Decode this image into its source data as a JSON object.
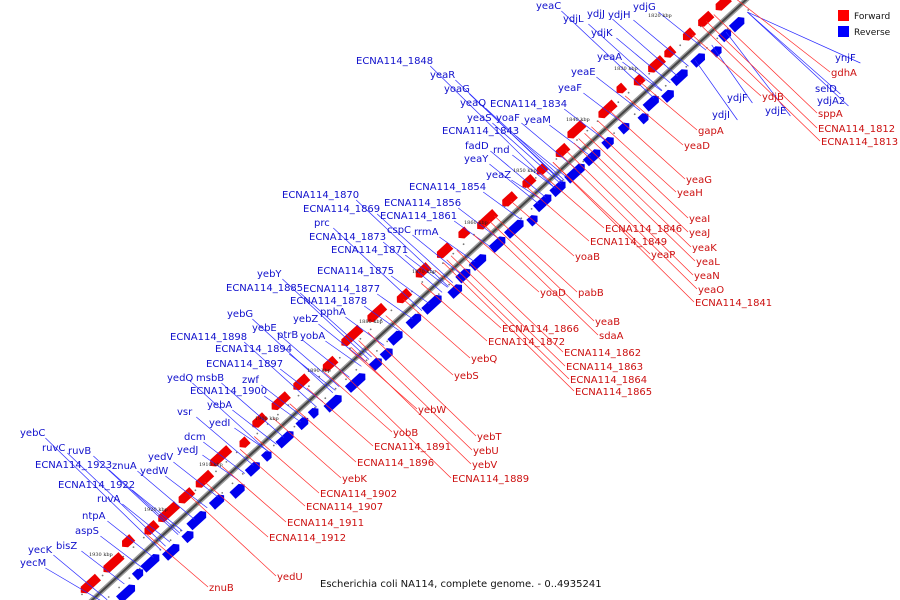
{
  "caption": "Escherichia coli NA114, complete genome. - 0..4935241",
  "legend": {
    "forward_label": "Forward",
    "reverse_label": "Reverse",
    "forward_color": "#ff0000",
    "reverse_color": "#0000ff"
  },
  "ticks": [
    "1820 kbp",
    "1830 kbp",
    "1840 kbp",
    "1850 kbp",
    "1860 kbp",
    "1870 kbp",
    "1880 kbp",
    "1890 kbp",
    "1900 kbp",
    "1910 kbp",
    "1920 kbp",
    "1930 kbp"
  ],
  "reverse_genes": [
    "yeaC",
    "ydjL",
    "ydjJ",
    "ydjH",
    "ydjG",
    "ydjK",
    "ECNA114_1848",
    "yeaA",
    "yeaR",
    "yeaE",
    "yoaG",
    "yeaF",
    "yeaQ",
    "ECNA114_1834",
    "yeaS",
    "yoaF",
    "yeaM",
    "ECNA114_1843",
    "fadD",
    "rnd",
    "yeaY",
    "yeaZ",
    "ECNA114_1854",
    "ECNA114_1870",
    "ECNA114_1856",
    "ECNA114_1869",
    "ECNA114_1861",
    "prc",
    "cspC",
    "rrmA",
    "ECNA114_1873",
    "ECNA114_1871",
    "yebY",
    "ECNA114_1875",
    "ECNA114_1885",
    "ECNA114_1877",
    "ECNA114_1878",
    "pphA",
    "yebG",
    "yebZ",
    "yebE",
    "ptrB",
    "yobA",
    "ECNA114_1898",
    "ECNA114_1894",
    "ECNA114_1897",
    "yedQ",
    "msbB",
    "zwf",
    "ECNA114_1900",
    "yebA",
    "vsr",
    "yedI",
    "dcm",
    "yedJ",
    "yebC",
    "ruvC",
    "ruvB",
    "yedV",
    "ECNA114_1923",
    "znuA",
    "yedW",
    "ECNA114_1922",
    "ruvA",
    "ntpA",
    "aspS",
    "bisZ",
    "yecK",
    "yecM",
    "ynjF",
    "selD",
    "ydjA2",
    "ydjF",
    "ydjI",
    "ydjE"
  ],
  "forward_genes": [
    "gdhA",
    "ydjB",
    "sppA",
    "ECNA114_1812",
    "ECNA114_1813",
    "gapA",
    "yeaD",
    "yeaG",
    "yeaH",
    "yeaI",
    "yeaJ",
    "ECNA114_1846",
    "yeaK",
    "ECNA114_1849",
    "yeaL",
    "yeaP",
    "yoaB",
    "yeaN",
    "yeaO",
    "ECNA114_1841",
    "yoaD",
    "pabB",
    "yeaB",
    "sdaA",
    "ECNA114_1866",
    "ECNA114_1872",
    "ECNA114_1862",
    "yebQ",
    "ECNA114_1863",
    "ECNA114_1864",
    "yebS",
    "ECNA114_1865",
    "yebW",
    "yebT",
    "yobB",
    "yebU",
    "ECNA114_1891",
    "yebV",
    "ECNA114_1896",
    "ECNA114_1889",
    "yebK",
    "ECNA114_1902",
    "ECNA114_1907",
    "ECNA114_1911",
    "ECNA114_1912",
    "yedU",
    "znuB"
  ]
}
